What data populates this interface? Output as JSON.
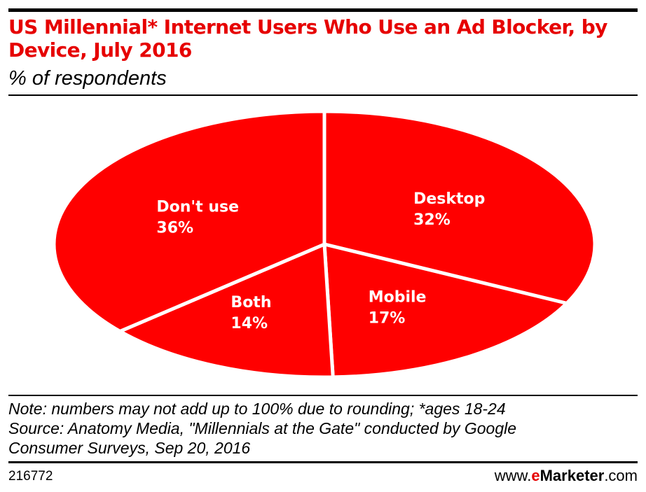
{
  "chart_data": {
    "type": "pie",
    "title": "US Millennial* Internet Users Who Use an Ad Blocker, by Device, July 2016",
    "subtitle": "% of respondents",
    "slices": [
      {
        "name": "Desktop",
        "value": 32,
        "label": "32%"
      },
      {
        "name": "Mobile",
        "value": 17,
        "label": "17%"
      },
      {
        "name": "Both",
        "value": 14,
        "label": "14%"
      },
      {
        "name": "Don't use",
        "value": 36,
        "label": "36%"
      }
    ],
    "color": "#ff0000",
    "separator_color": "#ffffff",
    "start": "top, clockwise"
  },
  "notes": {
    "line1": "Note: numbers may not add up to 100% due to rounding; *ages 18-24",
    "line2": "Source: Anatomy Media, \"Millennials at the Gate\" conducted by Google",
    "line3": "Consumer Surveys, Sep 20, 2016"
  },
  "footer": {
    "chart_id": "216772",
    "brand_prefix": "www.",
    "brand_e": "e",
    "brand_name": "Marketer",
    "brand_suffix": ".com"
  }
}
